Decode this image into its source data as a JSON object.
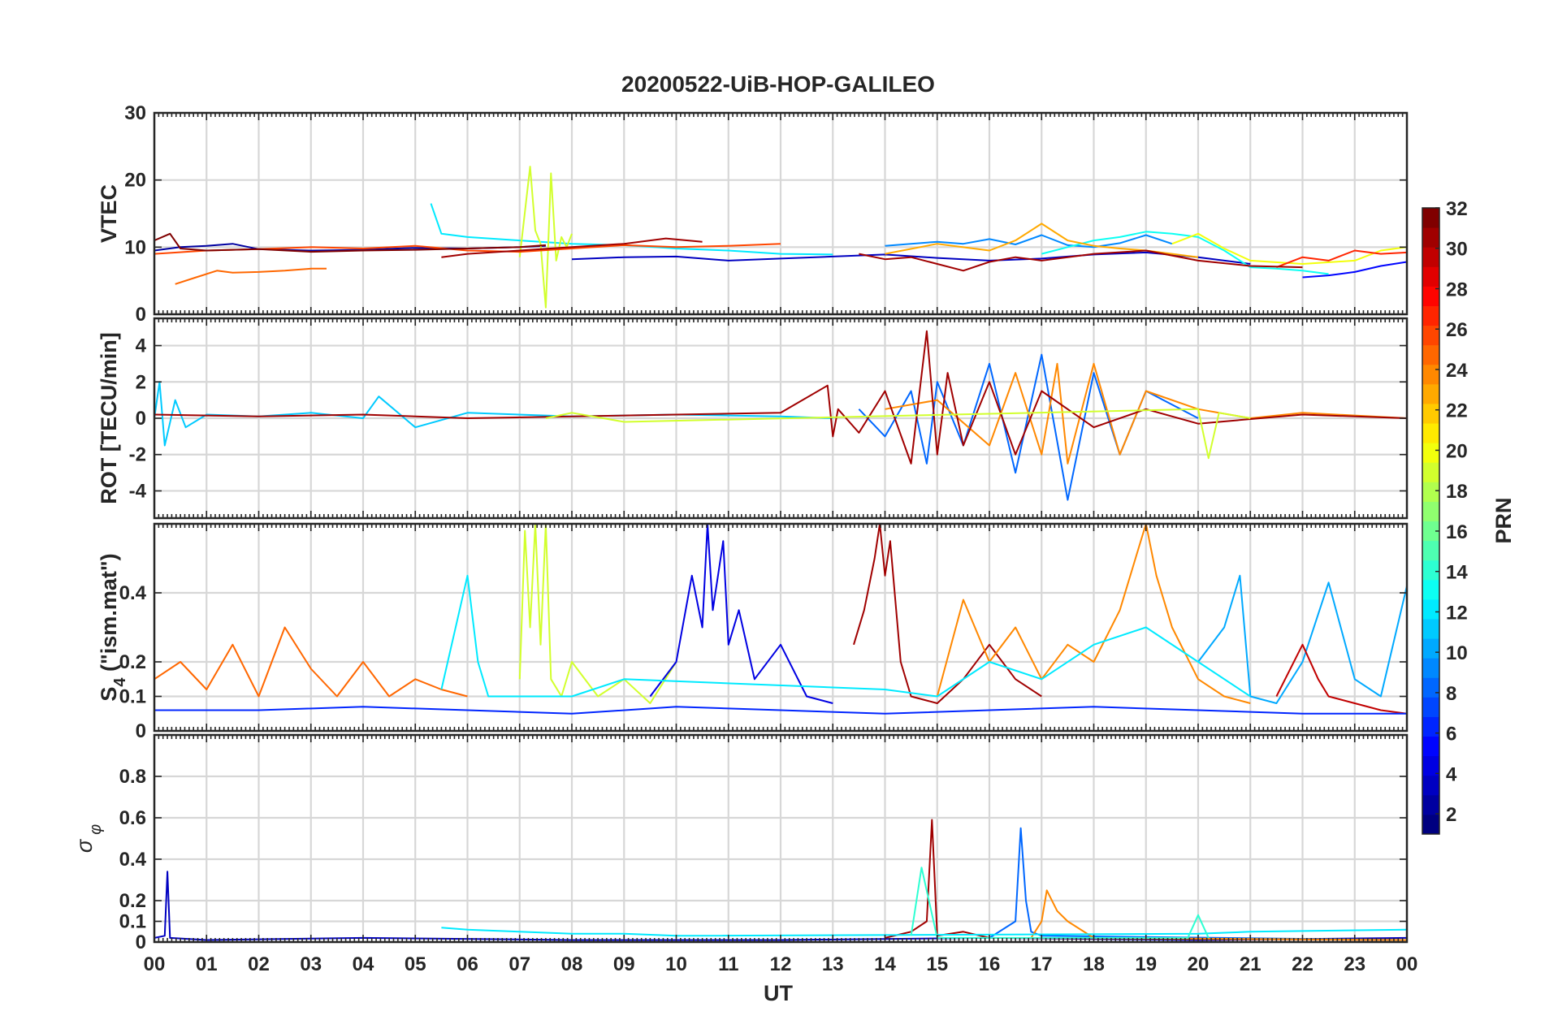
{
  "figure": {
    "title": "20200522-UiB-HOP-GALILEO",
    "xlabel": "UT",
    "x_ticks": [
      "00",
      "01",
      "02",
      "03",
      "04",
      "05",
      "06",
      "07",
      "08",
      "09",
      "10",
      "11",
      "12",
      "13",
      "14",
      "15",
      "16",
      "17",
      "18",
      "19",
      "20",
      "21",
      "22",
      "23",
      "00"
    ]
  },
  "colorbar": {
    "label": "PRN",
    "range": [
      1,
      32
    ],
    "ticks": [
      "2",
      "4",
      "6",
      "8",
      "10",
      "12",
      "14",
      "16",
      "18",
      "20",
      "22",
      "24",
      "26",
      "28",
      "30",
      "32"
    ],
    "colormap": "jet"
  },
  "chart_data": [
    {
      "type": "line",
      "panel": "VTEC",
      "ylabel": "VTEC",
      "ylim": [
        0,
        30
      ],
      "y_ticks": [
        "0",
        "10",
        "20",
        "30"
      ],
      "xlim": [
        0,
        24
      ],
      "grid": true,
      "series": [
        {
          "name": "PRN 2",
          "x": [
            0.0,
            0.5,
            1.0,
            1.5,
            2.0,
            3.0,
            4.0,
            5.0,
            6.0,
            7.0,
            7.5
          ],
          "values": [
            9.5,
            10.0,
            10.2,
            10.5,
            9.7,
            9.5,
            9.6,
            9.9,
            9.8,
            10.0,
            10.2
          ]
        },
        {
          "name": "PRN 3",
          "x": [
            8.0,
            9.0,
            10.0,
            11.0,
            12.0,
            13.0,
            14.0,
            15.0,
            16.0,
            17.0,
            18.0,
            19.0,
            20.0,
            21.0
          ],
          "values": [
            8.2,
            8.5,
            8.6,
            8.0,
            8.3,
            8.6,
            8.9,
            8.4,
            8.0,
            8.3,
            8.9,
            9.2,
            8.5,
            7.5
          ]
        },
        {
          "name": "PRN 5",
          "x": [
            22.0,
            22.5,
            23.0,
            23.5,
            24.0
          ],
          "values": [
            5.5,
            5.8,
            6.3,
            7.2,
            7.8
          ]
        },
        {
          "name": "PRN 9",
          "x": [
            14.0,
            15.0,
            15.5,
            16.0,
            16.5,
            17.0,
            17.5,
            18.0,
            18.5,
            19.0,
            19.5
          ],
          "values": [
            10.2,
            10.8,
            10.5,
            11.2,
            10.4,
            11.8,
            10.3,
            10.0,
            10.6,
            11.8,
            10.5
          ]
        },
        {
          "name": "PRN 12",
          "x": [
            5.3,
            5.5,
            6.0,
            7.0,
            8.0,
            9.0,
            10.0,
            11.0,
            12.0,
            13.0
          ],
          "values": [
            16.5,
            12.0,
            11.5,
            11.0,
            10.5,
            10.3,
            9.8,
            9.5,
            9.0,
            8.9
          ]
        },
        {
          "name": "PRN 13",
          "x": [
            17.0,
            17.5,
            18.0,
            18.5,
            19.0,
            19.5,
            20.0,
            20.5,
            21.0,
            21.5,
            22.0,
            22.5
          ],
          "values": [
            9.0,
            10.0,
            11.0,
            11.5,
            12.3,
            12.0,
            11.5,
            9.5,
            7.0,
            6.8,
            6.5,
            6.0
          ]
        },
        {
          "name": "PRN 19",
          "x": [
            7.0,
            7.2,
            7.3,
            7.4,
            7.5,
            7.6,
            7.7,
            7.8,
            7.9,
            8.0
          ],
          "values": [
            8.5,
            22.0,
            12.5,
            10.5,
            1.0,
            21.0,
            8.0,
            11.5,
            10.0,
            12.0
          ]
        },
        {
          "name": "PRN 20",
          "x": [
            19.5,
            20.0,
            20.5,
            21.0,
            22.0,
            23.0,
            23.5,
            24.0
          ],
          "values": [
            10.5,
            12.0,
            9.8,
            8.0,
            7.5,
            8.0,
            9.5,
            10.0
          ]
        },
        {
          "name": "PRN 23",
          "x": [
            14.0,
            15.0,
            16.0,
            16.5,
            17.0,
            17.5,
            18.0,
            18.5,
            19.0,
            20.0
          ],
          "values": [
            9.0,
            10.5,
            9.5,
            11.0,
            13.5,
            11.0,
            10.2,
            9.8,
            9.5,
            8.5
          ]
        },
        {
          "name": "PRN 25",
          "x": [
            0.4,
            0.8,
            1.2,
            1.5,
            2.0,
            2.5,
            3.0,
            3.3
          ],
          "values": [
            4.5,
            5.5,
            6.5,
            6.2,
            6.3,
            6.5,
            6.8,
            6.8
          ]
        },
        {
          "name": "PRN 26",
          "x": [
            0.0,
            1.0,
            2.0,
            3.0,
            4.0,
            5.0,
            6.0,
            7.0,
            8.0,
            9.0,
            10.0,
            11.0,
            12.0
          ],
          "values": [
            9.0,
            9.5,
            9.7,
            10.0,
            9.8,
            10.2,
            9.5,
            9.3,
            9.8,
            10.3,
            10.0,
            10.2,
            10.5
          ]
        },
        {
          "name": "PRN 27",
          "x": [
            21.5,
            22.0,
            22.5,
            23.0,
            23.5,
            24.0
          ],
          "values": [
            7.0,
            8.5,
            8.0,
            9.5,
            9.0,
            9.2
          ]
        },
        {
          "name": "PRN 31",
          "x": [
            5.5,
            6.0,
            7.0,
            8.0,
            9.0,
            9.8,
            10.5
          ],
          "values": [
            8.5,
            9.0,
            9.5,
            10.0,
            10.5,
            11.3,
            10.8
          ]
        },
        {
          "name": "PRN 32",
          "x": [
            0.0,
            0.3,
            0.5,
            1.0,
            2.0,
            3.0,
            4.0,
            5.0,
            6.0,
            7.0,
            7.5
          ],
          "values": [
            11.0,
            12.0,
            9.8,
            9.5,
            9.7,
            9.3,
            9.5,
            9.6,
            9.8,
            10.0,
            10.3
          ]
        },
        {
          "name": "PRN 31b",
          "x": [
            13.5,
            14.0,
            14.5,
            15.0,
            15.5,
            16.0,
            16.5,
            17.0,
            18.0,
            19.0,
            20.0,
            21.0,
            22.0
          ],
          "values": [
            9.0,
            8.2,
            8.5,
            7.5,
            6.5,
            7.8,
            8.5,
            8.0,
            9.0,
            9.5,
            8.0,
            7.2,
            7.0
          ]
        }
      ]
    },
    {
      "type": "line",
      "panel": "ROT",
      "ylabel": "ROT [TECU/min]",
      "ylim": [
        -5.5,
        5.5
      ],
      "y_ticks": [
        "-4",
        "-2",
        "0",
        "2",
        "4"
      ],
      "xlim": [
        0,
        24
      ],
      "grid": true,
      "series": [
        {
          "name": "PRN 11",
          "x": [
            0.0,
            0.1,
            0.2,
            0.4,
            0.6,
            1.0,
            2.0,
            3.0,
            4.0,
            4.3,
            5.0,
            6.0,
            8.0,
            10.0,
            12.0,
            13.0
          ],
          "values": [
            0.0,
            2.0,
            -1.5,
            1.0,
            -0.5,
            0.2,
            0.1,
            0.3,
            0.0,
            1.2,
            -0.5,
            0.3,
            0.1,
            0.2,
            0.1,
            0.0
          ]
        },
        {
          "name": "PRN 8",
          "x": [
            13.5,
            14.0,
            14.5,
            14.8,
            15.0,
            15.5,
            16.0,
            16.5,
            17.0,
            17.5,
            18.0,
            18.5,
            19.0,
            20.0
          ],
          "values": [
            0.5,
            -1.0,
            1.5,
            -2.5,
            2.0,
            -1.5,
            3.0,
            -3.0,
            3.5,
            -4.5,
            2.5,
            -2.0,
            1.5,
            0.0
          ]
        },
        {
          "name": "PRN 24",
          "x": [
            14.0,
            15.0,
            16.0,
            16.5,
            17.0,
            17.3,
            17.5,
            18.0,
            18.5,
            19.0,
            20.0,
            21.0,
            22.0,
            24.0
          ],
          "values": [
            0.5,
            1.0,
            -1.5,
            2.5,
            -2.0,
            3.0,
            -2.5,
            3.0,
            -2.0,
            1.5,
            0.5,
            0.0,
            0.3,
            0.0
          ]
        },
        {
          "name": "PRN 31",
          "x": [
            0.0,
            2.0,
            4.0,
            6.0,
            8.0,
            10.0,
            12.0,
            12.9,
            13.0,
            13.1,
            13.5,
            14.0,
            14.5,
            14.8,
            15.0,
            15.2,
            15.5,
            16.0,
            16.5,
            17.0,
            18.0,
            19.0,
            20.0,
            22.0,
            24.0
          ],
          "values": [
            0.2,
            0.1,
            0.2,
            0.0,
            0.1,
            0.2,
            0.3,
            1.8,
            -1.0,
            0.5,
            -0.8,
            1.5,
            -2.5,
            4.8,
            -2.0,
            2.5,
            -1.5,
            2.0,
            -2.0,
            1.5,
            -0.5,
            0.5,
            -0.3,
            0.2,
            0.0
          ]
        },
        {
          "name": "PRN 19",
          "x": [
            7.5,
            8.0,
            9.0,
            20.0,
            20.2,
            20.4,
            21.0
          ],
          "values": [
            0.0,
            0.3,
            -0.2,
            0.5,
            -2.2,
            0.3,
            0.0
          ]
        }
      ]
    },
    {
      "type": "line",
      "panel": "S4",
      "ylabel": "S4 (\"ism.mat\")",
      "ylabel_main": "S",
      "ylabel_sub": "4",
      "ylabel_tail": " (\"ism.mat\")",
      "ylim": [
        0,
        0.6
      ],
      "y_ticks": [
        "0",
        "0.1",
        "0.2",
        "0.4"
      ],
      "xlim": [
        0,
        24
      ],
      "grid": true,
      "series": [
        {
          "name": "PRN 25",
          "x": [
            0.0,
            0.5,
            1.0,
            1.5,
            2.0,
            2.5,
            3.0,
            3.5,
            4.0,
            4.5,
            5.0,
            5.5,
            6.0
          ],
          "values": [
            0.15,
            0.2,
            0.12,
            0.25,
            0.1,
            0.3,
            0.18,
            0.1,
            0.2,
            0.1,
            0.15,
            0.12,
            0.1
          ]
        },
        {
          "name": "PRN 19",
          "x": [
            7.0,
            7.1,
            7.2,
            7.3,
            7.4,
            7.5,
            7.6,
            7.8,
            8.0,
            8.5,
            9.0,
            9.5,
            10.0
          ],
          "values": [
            0.15,
            0.58,
            0.3,
            0.6,
            0.25,
            0.6,
            0.15,
            0.1,
            0.2,
            0.1,
            0.15,
            0.08,
            0.2
          ]
        },
        {
          "name": "PRN 4",
          "x": [
            9.5,
            10.0,
            10.3,
            10.5,
            10.6,
            10.7,
            10.9,
            11.0,
            11.2,
            11.5,
            12.0,
            12.5,
            13.0
          ],
          "values": [
            0.1,
            0.2,
            0.45,
            0.3,
            0.6,
            0.35,
            0.55,
            0.25,
            0.35,
            0.15,
            0.25,
            0.1,
            0.08
          ]
        },
        {
          "name": "PRN 31",
          "x": [
            13.4,
            13.6,
            13.8,
            13.9,
            14.0,
            14.1,
            14.3,
            14.5,
            15.0,
            15.5,
            16.0,
            16.5,
            17.0
          ],
          "values": [
            0.25,
            0.35,
            0.5,
            0.6,
            0.45,
            0.55,
            0.2,
            0.1,
            0.08,
            0.15,
            0.25,
            0.15,
            0.1
          ]
        },
        {
          "name": "PRN 24",
          "x": [
            15.0,
            15.5,
            16.0,
            16.5,
            17.0,
            17.5,
            18.0,
            18.5,
            18.8,
            19.0,
            19.2,
            19.5,
            20.0,
            20.5,
            21.0
          ],
          "values": [
            0.1,
            0.38,
            0.2,
            0.3,
            0.15,
            0.25,
            0.2,
            0.35,
            0.5,
            0.6,
            0.45,
            0.3,
            0.15,
            0.1,
            0.08
          ]
        },
        {
          "name": "PRN 10",
          "x": [
            20.0,
            20.5,
            20.8,
            21.0,
            21.5,
            22.0,
            22.5,
            23.0,
            23.5,
            24.0
          ],
          "values": [
            0.2,
            0.3,
            0.45,
            0.1,
            0.08,
            0.2,
            0.43,
            0.15,
            0.1,
            0.42
          ]
        },
        {
          "name": "PRN 30",
          "x": [
            21.5,
            22.0,
            22.3,
            22.5,
            23.0,
            23.5,
            24.0
          ],
          "values": [
            0.1,
            0.25,
            0.15,
            0.1,
            0.08,
            0.06,
            0.05
          ]
        },
        {
          "name": "PRN 6",
          "x": [
            0.0,
            2.0,
            4.0,
            6.0,
            8.0,
            10.0,
            12.0,
            14.0,
            16.0,
            18.0,
            20.0,
            22.0,
            24.0
          ],
          "values": [
            0.06,
            0.06,
            0.07,
            0.06,
            0.05,
            0.07,
            0.06,
            0.05,
            0.06,
            0.07,
            0.06,
            0.05,
            0.05
          ]
        },
        {
          "name": "PRN 12",
          "x": [
            5.5,
            6.0,
            6.2,
            6.4,
            8.0,
            9.0,
            14.0,
            15.0,
            16.0,
            17.0,
            18.0,
            19.0,
            20.0,
            21.0
          ],
          "values": [
            0.12,
            0.45,
            0.2,
            0.1,
            0.1,
            0.15,
            0.12,
            0.1,
            0.2,
            0.15,
            0.25,
            0.3,
            0.2,
            0.1
          ]
        }
      ]
    },
    {
      "type": "line",
      "panel": "sigma_phi",
      "ylabel": "σ φ",
      "ylabel_main": "σ",
      "ylabel_sub": "φ",
      "ylim": [
        0,
        1
      ],
      "y_ticks": [
        "0",
        "0.1",
        "0.2",
        "0.4",
        "0.6",
        "0.8"
      ],
      "xlim": [
        0,
        24
      ],
      "grid": true,
      "series": [
        {
          "name": "PRN 3",
          "x": [
            0.0,
            0.2,
            0.25,
            0.3,
            1.0,
            4.0,
            8.0,
            12.0,
            16.0,
            20.0,
            24.0
          ],
          "values": [
            0.02,
            0.03,
            0.34,
            0.02,
            0.01,
            0.02,
            0.01,
            0.01,
            0.02,
            0.01,
            0.02
          ]
        },
        {
          "name": "PRN 31",
          "x": [
            14.0,
            14.5,
            14.8,
            14.9,
            15.0,
            15.5,
            16.0,
            24.0
          ],
          "values": [
            0.02,
            0.05,
            0.1,
            0.59,
            0.03,
            0.05,
            0.02,
            0.01
          ]
        },
        {
          "name": "PRN 8",
          "x": [
            16.0,
            16.5,
            16.6,
            16.7,
            16.8,
            17.0,
            24.0
          ],
          "values": [
            0.02,
            0.1,
            0.55,
            0.2,
            0.05,
            0.03,
            0.01
          ]
        },
        {
          "name": "PRN 24",
          "x": [
            16.8,
            17.0,
            17.1,
            17.3,
            17.5,
            18.0,
            24.0
          ],
          "values": [
            0.02,
            0.1,
            0.25,
            0.15,
            0.1,
            0.02,
            0.01
          ]
        },
        {
          "name": "PRN 12",
          "x": [
            5.5,
            6.0,
            7.0,
            8.0,
            9.0,
            10.0,
            20.0,
            21.0,
            24.0
          ],
          "values": [
            0.07,
            0.06,
            0.05,
            0.04,
            0.04,
            0.03,
            0.04,
            0.05,
            0.06
          ]
        },
        {
          "name": "PRN 14",
          "x": [
            14.5,
            14.7,
            15.0,
            19.8,
            20.0,
            20.2
          ],
          "values": [
            0.03,
            0.36,
            0.02,
            0.02,
            0.13,
            0.02
          ]
        }
      ]
    }
  ]
}
